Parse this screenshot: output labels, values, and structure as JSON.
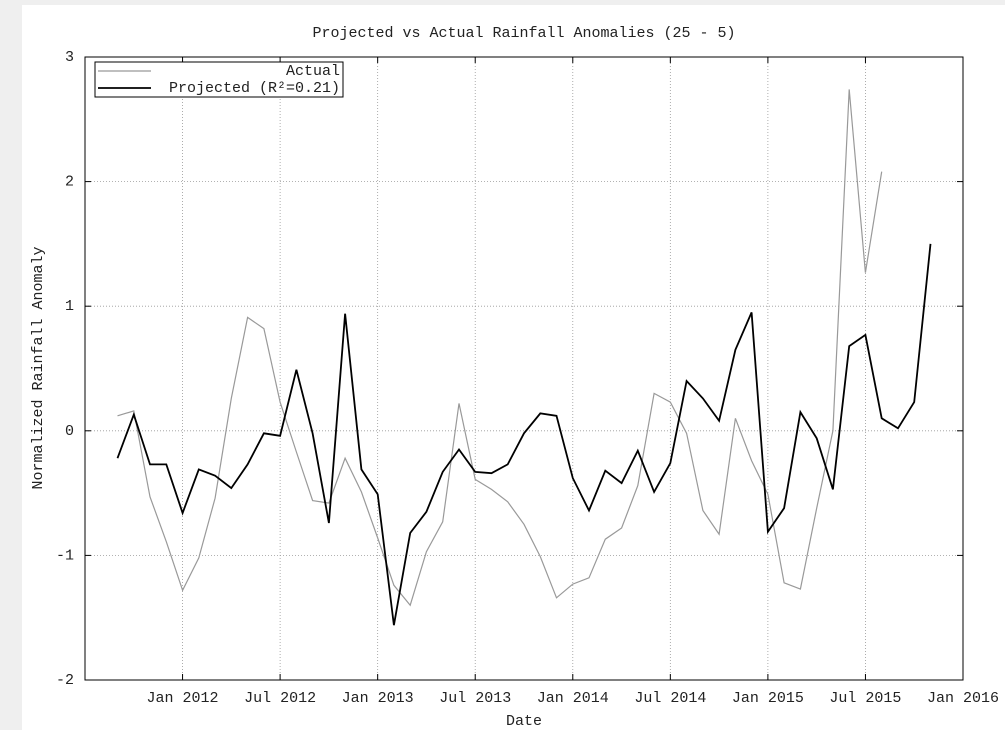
{
  "chart_data": {
    "type": "line",
    "title": "Projected vs Actual Rainfall Anomalies (25 - 5)",
    "xlabel": "Date",
    "ylabel": "Normalized Rainfall Anomaly",
    "x": [
      "2011-09",
      "2011-10",
      "2011-11",
      "2011-12",
      "2012-01",
      "2012-02",
      "2012-03",
      "2012-04",
      "2012-05",
      "2012-06",
      "2012-07",
      "2012-08",
      "2012-09",
      "2012-10",
      "2012-11",
      "2012-12",
      "2013-01",
      "2013-02",
      "2013-03",
      "2013-04",
      "2013-05",
      "2013-06",
      "2013-07",
      "2013-08",
      "2013-09",
      "2013-10",
      "2013-11",
      "2013-12",
      "2014-01",
      "2014-02",
      "2014-03",
      "2014-04",
      "2014-05",
      "2014-06",
      "2014-07",
      "2014-08",
      "2014-09",
      "2014-10",
      "2014-11",
      "2014-12",
      "2015-01",
      "2015-02",
      "2015-03",
      "2015-04",
      "2015-05",
      "2015-06",
      "2015-07",
      "2015-08",
      "2015-09",
      "2015-10",
      "2015-11"
    ],
    "series": [
      {
        "name": "Actual",
        "color": "#999999",
        "values": [
          0.12,
          0.16,
          -0.53,
          -0.89,
          -1.28,
          -1.02,
          -0.54,
          0.26,
          0.91,
          0.82,
          0.23,
          -0.17,
          -0.56,
          -0.58,
          -0.22,
          -0.49,
          -0.86,
          -1.24,
          -1.4,
          -0.97,
          -0.73,
          0.22,
          -0.39,
          -0.47,
          -0.57,
          -0.75,
          -1.01,
          -1.34,
          -1.23,
          -1.18,
          -0.87,
          -0.78,
          -0.44,
          0.3,
          0.23,
          -0.02,
          -0.64,
          -0.83,
          0.1,
          -0.24,
          -0.51,
          -1.22,
          -1.27,
          -0.62,
          0.0,
          2.74,
          1.27,
          2.08,
          null,
          null,
          null
        ]
      },
      {
        "name": "Projected (R²=0.21)",
        "color": "#000000",
        "values": [
          -0.22,
          0.13,
          -0.27,
          -0.27,
          -0.66,
          -0.31,
          -0.36,
          -0.46,
          -0.27,
          -0.02,
          -0.04,
          0.49,
          -0.02,
          -0.74,
          0.94,
          -0.31,
          -0.51,
          -1.56,
          -0.82,
          -0.65,
          -0.33,
          -0.15,
          -0.33,
          -0.34,
          -0.27,
          -0.02,
          0.14,
          0.12,
          -0.38,
          -0.64,
          -0.32,
          -0.42,
          -0.16,
          -0.49,
          -0.26,
          0.4,
          0.26,
          0.08,
          0.65,
          0.95,
          -0.81,
          -0.62,
          0.15,
          -0.06,
          -0.47,
          0.68,
          0.77,
          0.1,
          0.02,
          0.23,
          1.5
        ]
      }
    ],
    "xlim": [
      "2011-07",
      "2016-01"
    ],
    "xticks": [
      {
        "value": "2012-01",
        "label": "Jan 2012"
      },
      {
        "value": "2012-07",
        "label": "Jul 2012"
      },
      {
        "value": "2013-01",
        "label": "Jan 2013"
      },
      {
        "value": "2013-07",
        "label": "Jul 2013"
      },
      {
        "value": "2014-01",
        "label": "Jan 2014"
      },
      {
        "value": "2014-07",
        "label": "Jul 2014"
      },
      {
        "value": "2015-01",
        "label": "Jan 2015"
      },
      {
        "value": "2015-07",
        "label": "Jul 2015"
      },
      {
        "value": "2016-01",
        "label": "Jan 2016"
      }
    ],
    "ylim": [
      -2,
      3
    ],
    "yticks": [
      -2,
      -1,
      0,
      1,
      2,
      3
    ],
    "grid": true,
    "legend": "upper left"
  }
}
